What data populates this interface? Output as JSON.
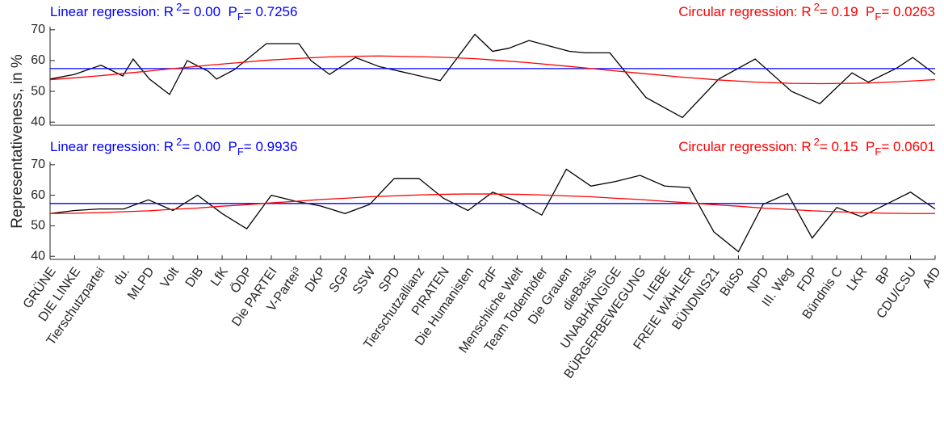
{
  "chart_data": [
    {
      "type": "line",
      "ylabel": "Representativeness, in %",
      "annotations": [
        {
          "text": "Linear regression: R",
          "sup": "2",
          "mid": "= 0.00  P",
          "sub": "F",
          "end": "= 0.7256",
          "color": "#0000ff",
          "corner": "left"
        },
        {
          "text": "Circular regression: R",
          "sup": "2",
          "mid": "= 0.19  P",
          "sub": "F",
          "end": "= 0.0263",
          "color": "#ff0000",
          "corner": "right"
        }
      ],
      "x": [
        1,
        1.99,
        3.07,
        3.96,
        4.38,
        5.04,
        5.86,
        6.58,
        7.44,
        7.77,
        8.49,
        9.8,
        11.12,
        11.61,
        12.37,
        13.42,
        14.4,
        16.87,
        18.28,
        19,
        19.66,
        20.48,
        22.12,
        22.78,
        23.77,
        25.24,
        26.72,
        28.2,
        29.68,
        31.16,
        32.31,
        33.62,
        34.28,
        35.43,
        36.09,
        37
      ],
      "xlim": [
        1,
        37
      ],
      "ylim": [
        39,
        71
      ],
      "yticks": [
        40,
        50,
        60,
        70
      ],
      "series": [
        {
          "color": "#000000",
          "values": [
            54,
            55.5,
            58.5,
            55,
            60.5,
            54,
            49,
            60,
            56.5,
            54,
            57,
            65.5,
            65.5,
            60,
            55.5,
            61,
            58,
            53.5,
            68.5,
            63,
            64,
            66.5,
            63,
            62.5,
            62.5,
            48,
            41.5,
            54,
            60.5,
            50,
            46,
            56,
            53,
            57.5,
            61,
            55.5
          ]
        },
        {
          "color": "#0000ff",
          "values": [
            57.4,
            57.4,
            57.4,
            57.4,
            57.4,
            57.4,
            57.4,
            57.4,
            57.4,
            57.4,
            57.4,
            57.4,
            57.4,
            57.4,
            57.4,
            57.4,
            57.4,
            57.4,
            57.4,
            57.4,
            57.4,
            57.4,
            57.4,
            57.4,
            57.4,
            57.4,
            57.4,
            57.4,
            57.4,
            57.4,
            57.4,
            57.4,
            57.4,
            57.4,
            57.4,
            57.4
          ]
        },
        {
          "color": "#ff0000",
          "values": [
            53.8,
            54.4,
            55.1,
            55.8,
            56.1,
            56.6,
            57.3,
            57.8,
            58.5,
            58.7,
            59.2,
            60.1,
            60.7,
            60.9,
            61.2,
            61.4,
            61.5,
            61.1,
            60.6,
            60.2,
            59.8,
            59.3,
            58.1,
            57.6,
            56.8,
            55.7,
            54.6,
            53.7,
            53,
            52.6,
            52.5,
            52.6,
            52.7,
            53.1,
            53.4,
            53.8
          ]
        }
      ]
    },
    {
      "type": "line",
      "annotations": [
        {
          "text": "Linear regression: R",
          "sup": "2",
          "mid": "= 0.00  P",
          "sub": "F",
          "end": "= 0.9936",
          "color": "#0000ff",
          "corner": "left"
        },
        {
          "text": "Circular regression: R",
          "sup": "2",
          "mid": "= 0.15  P",
          "sub": "F",
          "end": "= 0.0601",
          "color": "#ff0000",
          "corner": "right"
        }
      ],
      "categories": [
        "GRÜNE",
        "DIE LINKE",
        "Tierschutzpartei",
        "du.",
        "MLPD",
        "Volt",
        "DiB",
        "LfK",
        "ÖDP",
        "Die PARTEI",
        "V-Partei³",
        "DKP",
        "SGP",
        "SSW",
        "SPD",
        "Tierschutzallianz",
        "PIRATEN",
        "Die Humanisten",
        "PdF",
        "Menschliche Welt",
        "Team Todenhöfer",
        "Die Grauen",
        "dieBasis",
        "UNABHÄNGIGE",
        "BÜRGERBEWEGUNG",
        "LIEBE",
        "FREIE WÄHLER",
        "BÜNDNIS21",
        "BüSo",
        "NPD",
        "III. Weg",
        "FDP",
        "Bündnis C",
        "LKR",
        "BP",
        "CDU/CSU",
        "AfD"
      ],
      "ylim": [
        39,
        71
      ],
      "yticks": [
        40,
        50,
        60,
        70
      ],
      "series": [
        {
          "color": "#000000",
          "values": [
            54,
            55,
            55.5,
            55.5,
            58.5,
            55,
            60,
            54,
            49,
            60,
            58,
            56.5,
            54,
            57,
            65.5,
            65.5,
            59,
            55,
            61,
            58,
            53.5,
            68.5,
            63,
            64.5,
            66.5,
            63,
            62.5,
            48,
            41.5,
            57,
            60.5,
            46,
            56,
            53,
            57,
            61,
            55.5
          ]
        },
        {
          "color": "#0000ff",
          "values": [
            57.3,
            57.3,
            57.3,
            57.3,
            57.3,
            57.3,
            57.3,
            57.3,
            57.3,
            57.3,
            57.3,
            57.3,
            57.3,
            57.3,
            57.3,
            57.3,
            57.3,
            57.3,
            57.3,
            57.3,
            57.3,
            57.3,
            57.3,
            57.3,
            57.3,
            57.3,
            57.3,
            57.3,
            57.3,
            57.3,
            57.3,
            57.3,
            57.3,
            57.3,
            57.3,
            57.3,
            57.3
          ]
        },
        {
          "color": "#ff0000",
          "values": [
            54,
            54.1,
            54.3,
            54.6,
            54.9,
            55.4,
            55.8,
            56.4,
            56.9,
            57.5,
            58,
            58.6,
            59,
            59.5,
            59.8,
            60.1,
            60.3,
            60.4,
            60.4,
            60.3,
            60.1,
            59.8,
            59.5,
            59,
            58.6,
            58,
            57.5,
            56.9,
            56.4,
            55.8,
            55.4,
            54.9,
            54.6,
            54.3,
            54.1,
            54,
            54
          ]
        }
      ]
    }
  ]
}
